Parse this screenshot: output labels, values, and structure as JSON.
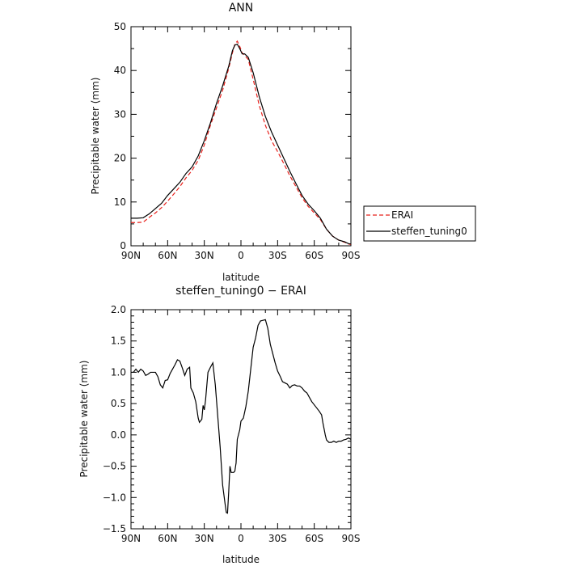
{
  "chart_data": [
    {
      "type": "line",
      "title": "ANN",
      "xlabel": "latitude",
      "ylabel": "Precipitable water (mm)",
      "xlim": [
        -90,
        90
      ],
      "ylim": [
        0,
        50
      ],
      "x_axis_direction": "north-to-south (90N on left, 90S on right)",
      "x_tick_values": [
        -90,
        -60,
        -30,
        0,
        30,
        60,
        90
      ],
      "x_tick_labels": [
        "90N",
        "60N",
        "30N",
        "0",
        "30S",
        "60S",
        "90S"
      ],
      "y_tick_values": [
        0,
        10,
        20,
        30,
        40,
        50
      ],
      "y_tick_labels": [
        "0",
        "10",
        "20",
        "30",
        "40",
        "50"
      ],
      "grid": false,
      "legend_placement": "right, outside plot",
      "series": [
        {
          "name": "ERAI",
          "color": "#e8201b",
          "dash": "dashed",
          "points": [
            [
              -90,
              5.3
            ],
            [
              -85,
              5.3
            ],
            [
              -80,
              5.4
            ],
            [
              -75,
              6.5
            ],
            [
              -70,
              7.5
            ],
            [
              -65,
              8.7
            ],
            [
              -60,
              10.2
            ],
            [
              -55,
              11.8
            ],
            [
              -50,
              13.5
            ],
            [
              -45,
              15.5
            ],
            [
              -40,
              17.2
            ],
            [
              -35,
              19.5
            ],
            [
              -30,
              23.0
            ],
            [
              -25,
              27.5
            ],
            [
              -20,
              31.5
            ],
            [
              -15,
              35.5
            ],
            [
              -10,
              40.5
            ],
            [
              -7,
              44.0
            ],
            [
              -5,
              46.0
            ],
            [
              -3,
              46.7
            ],
            [
              -1,
              45.5
            ],
            [
              1,
              44.0
            ],
            [
              3,
              43.5
            ],
            [
              6,
              42.5
            ],
            [
              10,
              38.0
            ],
            [
              15,
              32.0
            ],
            [
              20,
              27.5
            ],
            [
              25,
              24.0
            ],
            [
              30,
              21.5
            ],
            [
              35,
              18.8
            ],
            [
              40,
              16.0
            ],
            [
              45,
              13.5
            ],
            [
              50,
              11.0
            ],
            [
              55,
              9.0
            ],
            [
              60,
              7.5
            ],
            [
              65,
              6.0
            ],
            [
              70,
              3.8
            ],
            [
              75,
              2.2
            ],
            [
              80,
              1.3
            ],
            [
              85,
              0.8
            ],
            [
              88,
              0.4
            ],
            [
              90,
              0.3
            ]
          ]
        },
        {
          "name": "steffen_tuning0",
          "color": "#000000",
          "dash": "solid",
          "points": [
            [
              -90,
              6.3
            ],
            [
              -85,
              6.3
            ],
            [
              -80,
              6.4
            ],
            [
              -75,
              7.3
            ],
            [
              -70,
              8.5
            ],
            [
              -65,
              9.7
            ],
            [
              -60,
              11.5
            ],
            [
              -55,
              13.0
            ],
            [
              -50,
              14.5
            ],
            [
              -45,
              16.5
            ],
            [
              -40,
              18.0
            ],
            [
              -35,
              20.5
            ],
            [
              -30,
              24.0
            ],
            [
              -25,
              28.0
            ],
            [
              -20,
              32.5
            ],
            [
              -15,
              36.5
            ],
            [
              -10,
              41.0
            ],
            [
              -7,
              44.5
            ],
            [
              -5,
              45.8
            ],
            [
              -3,
              46.0
            ],
            [
              -1,
              45.0
            ],
            [
              1,
              43.8
            ],
            [
              3,
              43.8
            ],
            [
              6,
              43.0
            ],
            [
              10,
              39.5
            ],
            [
              15,
              34.0
            ],
            [
              20,
              29.5
            ],
            [
              25,
              26.0
            ],
            [
              30,
              23.0
            ],
            [
              35,
              20.0
            ],
            [
              40,
              17.0
            ],
            [
              45,
              14.2
            ],
            [
              50,
              11.5
            ],
            [
              55,
              9.5
            ],
            [
              60,
              8.0
            ],
            [
              65,
              6.3
            ],
            [
              70,
              3.8
            ],
            [
              75,
              2.2
            ],
            [
              80,
              1.3
            ],
            [
              85,
              0.9
            ],
            [
              88,
              0.5
            ],
            [
              90,
              0.4
            ]
          ]
        }
      ]
    },
    {
      "type": "line",
      "title": "steffen_tuning0 − ERAI",
      "xlabel": "latitude",
      "ylabel": "Precipitable water (mm)",
      "xlim": [
        -90,
        90
      ],
      "ylim": [
        -1.5,
        2.0
      ],
      "x_axis_direction": "north-to-south (90N on left, 90S on right)",
      "x_tick_values": [
        -90,
        -60,
        -30,
        0,
        30,
        60,
        90
      ],
      "x_tick_labels": [
        "90N",
        "60N",
        "30N",
        "0",
        "30S",
        "60S",
        "90S"
      ],
      "y_tick_values": [
        -1.5,
        -1.0,
        -0.5,
        0.0,
        0.5,
        1.0,
        1.5,
        2.0
      ],
      "y_tick_labels": [
        "−1.5",
        "−1.0",
        "−0.5",
        "0.0",
        "0.5",
        "1.0",
        "1.5",
        "2.0"
      ],
      "grid": false,
      "series": [
        {
          "color": "#000000",
          "dash": "solid",
          "points": [
            [
              -90,
              1.0
            ],
            [
              -88,
              1.0
            ],
            [
              -86,
              1.05
            ],
            [
              -84,
              1.0
            ],
            [
              -82,
              1.05
            ],
            [
              -80,
              1.02
            ],
            [
              -78,
              0.95
            ],
            [
              -76,
              0.97
            ],
            [
              -74,
              1.0
            ],
            [
              -72,
              1.0
            ],
            [
              -70,
              1.0
            ],
            [
              -68,
              0.93
            ],
            [
              -66,
              0.8
            ],
            [
              -64,
              0.75
            ],
            [
              -62,
              0.87
            ],
            [
              -60,
              0.88
            ],
            [
              -58,
              0.98
            ],
            [
              -56,
              1.05
            ],
            [
              -54,
              1.12
            ],
            [
              -52,
              1.2
            ],
            [
              -50,
              1.18
            ],
            [
              -48,
              1.07
            ],
            [
              -46,
              0.95
            ],
            [
              -44,
              1.05
            ],
            [
              -42,
              1.08
            ],
            [
              -41,
              0.75
            ],
            [
              -39,
              0.67
            ],
            [
              -37,
              0.53
            ],
            [
              -35,
              0.27
            ],
            [
              -34,
              0.2
            ],
            [
              -32,
              0.25
            ],
            [
              -31,
              0.47
            ],
            [
              -30,
              0.4
            ],
            [
              -29,
              0.55
            ],
            [
              -27,
              1.0
            ],
            [
              -25,
              1.08
            ],
            [
              -23,
              1.15
            ],
            [
              -21,
              0.8
            ],
            [
              -19,
              0.3
            ],
            [
              -17,
              -0.2
            ],
            [
              -15,
              -0.8
            ],
            [
              -13,
              -1.1
            ],
            [
              -12,
              -1.24
            ],
            [
              -11,
              -1.25
            ],
            [
              -10,
              -0.9
            ],
            [
              -9,
              -0.5
            ],
            [
              -8,
              -0.6
            ],
            [
              -6,
              -0.6
            ],
            [
              -5,
              -0.58
            ],
            [
              -4,
              -0.45
            ],
            [
              -3,
              -0.07
            ],
            [
              -1,
              0.08
            ],
            [
              0,
              0.22
            ],
            [
              2,
              0.27
            ],
            [
              4,
              0.45
            ],
            [
              6,
              0.7
            ],
            [
              8,
              1.05
            ],
            [
              10,
              1.4
            ],
            [
              12,
              1.55
            ],
            [
              14,
              1.75
            ],
            [
              16,
              1.82
            ],
            [
              18,
              1.83
            ],
            [
              20,
              1.84
            ],
            [
              22,
              1.7
            ],
            [
              24,
              1.45
            ],
            [
              26,
              1.3
            ],
            [
              28,
              1.15
            ],
            [
              30,
              1.02
            ],
            [
              32,
              0.94
            ],
            [
              34,
              0.85
            ],
            [
              36,
              0.83
            ],
            [
              38,
              0.81
            ],
            [
              40,
              0.75
            ],
            [
              42,
              0.79
            ],
            [
              44,
              0.8
            ],
            [
              46,
              0.78
            ],
            [
              48,
              0.78
            ],
            [
              50,
              0.75
            ],
            [
              52,
              0.7
            ],
            [
              54,
              0.67
            ],
            [
              56,
              0.6
            ],
            [
              58,
              0.53
            ],
            [
              60,
              0.48
            ],
            [
              62,
              0.43
            ],
            [
              64,
              0.38
            ],
            [
              66,
              0.32
            ],
            [
              67,
              0.2
            ],
            [
              68,
              0.1
            ],
            [
              69,
              0.0
            ],
            [
              70,
              -0.08
            ],
            [
              72,
              -0.12
            ],
            [
              74,
              -0.12
            ],
            [
              76,
              -0.1
            ],
            [
              78,
              -0.12
            ],
            [
              80,
              -0.1
            ],
            [
              82,
              -0.1
            ],
            [
              84,
              -0.08
            ],
            [
              86,
              -0.07
            ],
            [
              88,
              -0.05
            ],
            [
              90,
              -0.07
            ]
          ]
        }
      ]
    }
  ]
}
